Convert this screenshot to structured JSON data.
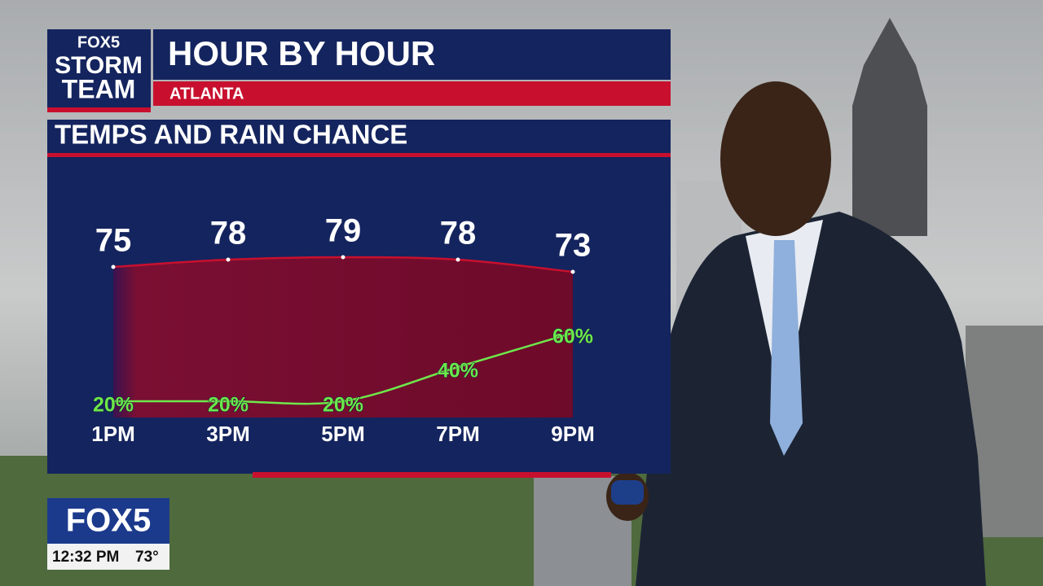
{
  "branding": {
    "logo_top": "FOX5",
    "logo_mid": "STORM",
    "logo_bottom": "TEAM"
  },
  "header": {
    "title": "HOUR BY HOUR",
    "location": "ATLANTA"
  },
  "bug": {
    "logo": "FOX5",
    "time": "12:32 PM",
    "temp": "73°"
  },
  "chart_data": {
    "type": "line",
    "title": "TEMPS AND RAIN CHANCE",
    "categories": [
      "1PM",
      "3PM",
      "5PM",
      "7PM",
      "9PM"
    ],
    "series": [
      {
        "name": "Temps",
        "color": "#c8102e",
        "values": [
          75,
          78,
          79,
          78,
          73
        ]
      },
      {
        "name": "Rain Chance",
        "color": "#6ee84a",
        "values": [
          20,
          20,
          20,
          40,
          60
        ],
        "value_labels": [
          "20%",
          "20%",
          "20%",
          "40%",
          "60%"
        ]
      }
    ]
  }
}
